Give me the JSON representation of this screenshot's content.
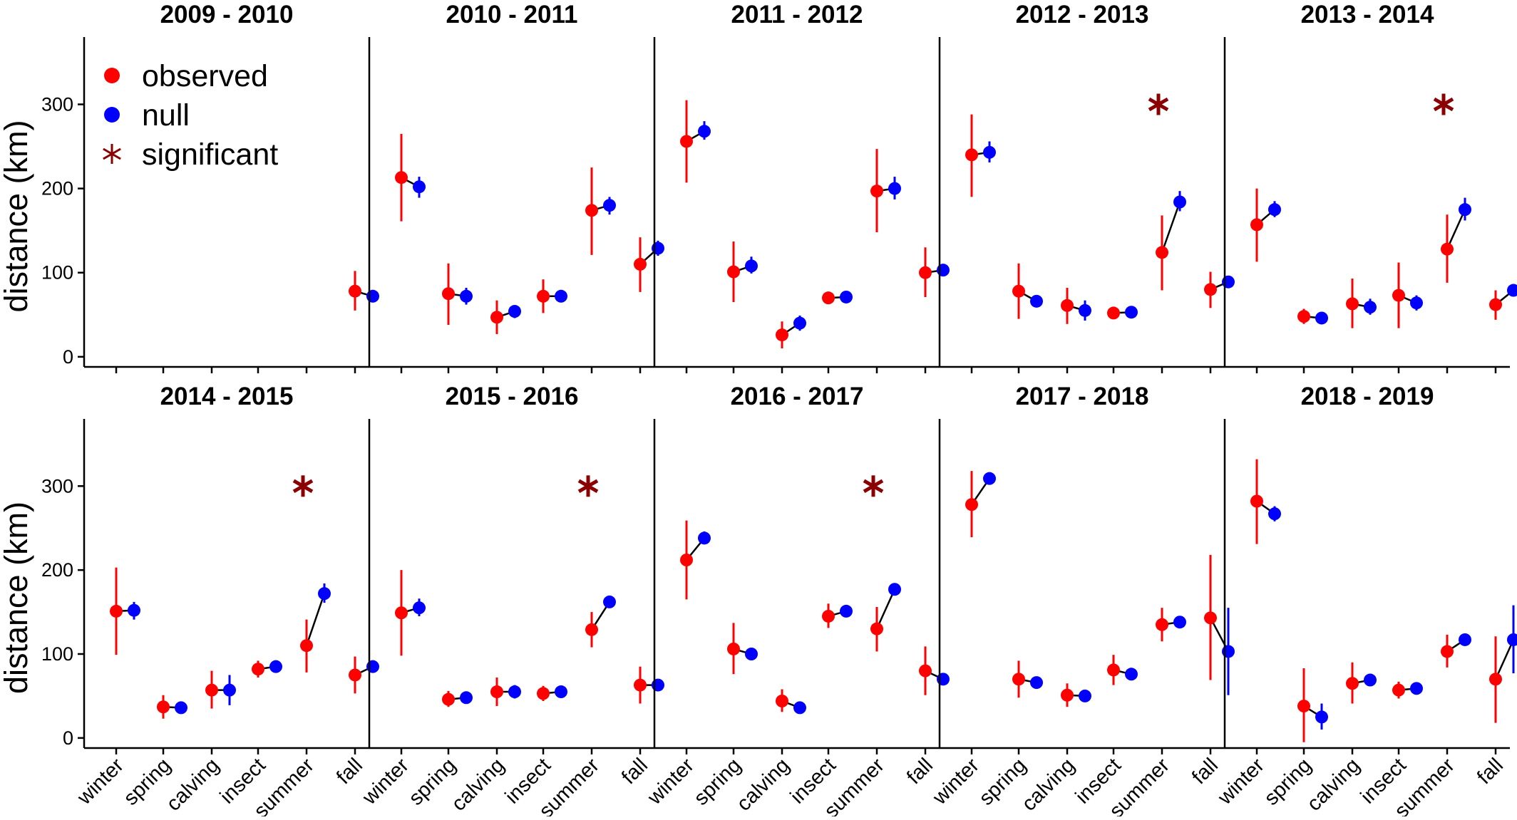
{
  "chart_data": {
    "type": "scatter",
    "title": "",
    "ylabel": "distance (km)",
    "xlabel": "",
    "categories": [
      "winter",
      "spring",
      "calving",
      "insect",
      "summer",
      "fall"
    ],
    "y_ticks": [
      0,
      100,
      200,
      300
    ],
    "ylim": [
      -12,
      380
    ],
    "grid": false,
    "legend": {
      "placement": "top-left",
      "entries": [
        {
          "key": "observed",
          "label": "observed",
          "marker": "circle",
          "color": "#ff0000"
        },
        {
          "key": "null",
          "label": "null",
          "marker": "circle",
          "color": "#0000ff"
        },
        {
          "key": "significant",
          "label": "significant",
          "marker": "asterisk",
          "color": "#8b0000"
        }
      ]
    },
    "colors": {
      "observed": "#ff0000",
      "null": "#0000ff",
      "significant": "#8b0000",
      "connector": "#000000"
    },
    "significant_marker_value": 300,
    "panels": [
      {
        "title": "2009 - 2010",
        "observed": [
          null,
          null,
          null,
          null,
          null,
          {
            "y": 78,
            "lo": 55,
            "hi": 102
          }
        ],
        "null": [
          null,
          null,
          null,
          null,
          null,
          {
            "y": 72,
            "lo": 66,
            "hi": 78
          }
        ],
        "significant": []
      },
      {
        "title": "2010 - 2011",
        "observed": [
          {
            "y": 213,
            "lo": 161,
            "hi": 265
          },
          {
            "y": 75,
            "lo": 38,
            "hi": 111
          },
          {
            "y": 47,
            "lo": 27,
            "hi": 67
          },
          {
            "y": 72,
            "lo": 52,
            "hi": 92
          },
          {
            "y": 174,
            "lo": 121,
            "hi": 225
          },
          {
            "y": 110,
            "lo": 77,
            "hi": 142
          }
        ],
        "null": [
          {
            "y": 202,
            "lo": 189,
            "hi": 214
          },
          {
            "y": 72,
            "lo": 62,
            "hi": 82
          },
          {
            "y": 54,
            "lo": 46,
            "hi": 61
          },
          {
            "y": 72,
            "lo": 66,
            "hi": 77
          },
          {
            "y": 180,
            "lo": 169,
            "hi": 190
          },
          {
            "y": 129,
            "lo": 120,
            "hi": 138
          }
        ],
        "significant": []
      },
      {
        "title": "2011 - 2012",
        "observed": [
          {
            "y": 256,
            "lo": 207,
            "hi": 305
          },
          {
            "y": 101,
            "lo": 65,
            "hi": 137
          },
          {
            "y": 26,
            "lo": 10,
            "hi": 42
          },
          {
            "y": 70,
            "lo": 67,
            "hi": 73
          },
          {
            "y": 197,
            "lo": 148,
            "hi": 247
          },
          {
            "y": 100,
            "lo": 71,
            "hi": 130
          }
        ],
        "null": [
          {
            "y": 268,
            "lo": 258,
            "hi": 280
          },
          {
            "y": 108,
            "lo": 99,
            "hi": 119
          },
          {
            "y": 40,
            "lo": 31,
            "hi": 49
          },
          {
            "y": 71,
            "lo": 67,
            "hi": 75
          },
          {
            "y": 200,
            "lo": 187,
            "hi": 214
          },
          {
            "y": 103,
            "lo": 97,
            "hi": 109
          }
        ],
        "significant": []
      },
      {
        "title": "2012 - 2013",
        "observed": [
          {
            "y": 240,
            "lo": 190,
            "hi": 288
          },
          {
            "y": 78,
            "lo": 45,
            "hi": 111
          },
          {
            "y": 61,
            "lo": 39,
            "hi": 82
          },
          {
            "y": 52,
            "lo": 49,
            "hi": 55
          },
          {
            "y": 124,
            "lo": 79,
            "hi": 168
          },
          {
            "y": 80,
            "lo": 58,
            "hi": 101
          }
        ],
        "null": [
          {
            "y": 243,
            "lo": 231,
            "hi": 256
          },
          {
            "y": 66,
            "lo": 59,
            "hi": 73
          },
          {
            "y": 55,
            "lo": 43,
            "hi": 67
          },
          {
            "y": 53,
            "lo": 49,
            "hi": 57
          },
          {
            "y": 184,
            "lo": 173,
            "hi": 197
          },
          {
            "y": 89,
            "lo": 84,
            "hi": 95
          }
        ],
        "significant": [
          "summer"
        ]
      },
      {
        "title": "2013 - 2014",
        "observed": [
          {
            "y": 157,
            "lo": 113,
            "hi": 200
          },
          {
            "y": 48,
            "lo": 39,
            "hi": 57
          },
          {
            "y": 63,
            "lo": 34,
            "hi": 93
          },
          {
            "y": 73,
            "lo": 34,
            "hi": 112
          },
          {
            "y": 128,
            "lo": 88,
            "hi": 169
          },
          {
            "y": 62,
            "lo": 44,
            "hi": 79
          }
        ],
        "null": [
          {
            "y": 175,
            "lo": 166,
            "hi": 185
          },
          {
            "y": 46,
            "lo": 42,
            "hi": 50
          },
          {
            "y": 59,
            "lo": 50,
            "hi": 69
          },
          {
            "y": 64,
            "lo": 55,
            "hi": 73
          },
          {
            "y": 175,
            "lo": 162,
            "hi": 189
          },
          {
            "y": 79,
            "lo": 74,
            "hi": 84
          }
        ],
        "significant": [
          "summer"
        ]
      },
      {
        "title": "2014 - 2015",
        "observed": [
          {
            "y": 151,
            "lo": 99,
            "hi": 203
          },
          {
            "y": 37,
            "lo": 23,
            "hi": 51
          },
          {
            "y": 57,
            "lo": 35,
            "hi": 80
          },
          {
            "y": 82,
            "lo": 72,
            "hi": 92
          },
          {
            "y": 110,
            "lo": 78,
            "hi": 141
          },
          {
            "y": 75,
            "lo": 53,
            "hi": 97
          }
        ],
        "null": [
          {
            "y": 152,
            "lo": 141,
            "hi": 162
          },
          {
            "y": 36,
            "lo": 31,
            "hi": 41
          },
          {
            "y": 57,
            "lo": 39,
            "hi": 75
          },
          {
            "y": 85,
            "lo": 80,
            "hi": 90
          },
          {
            "y": 172,
            "lo": 161,
            "hi": 184
          },
          {
            "y": 85,
            "lo": 80,
            "hi": 89
          }
        ],
        "significant": [
          "summer"
        ]
      },
      {
        "title": "2015 - 2016",
        "observed": [
          {
            "y": 149,
            "lo": 98,
            "hi": 200
          },
          {
            "y": 46,
            "lo": 37,
            "hi": 56
          },
          {
            "y": 55,
            "lo": 38,
            "hi": 72
          },
          {
            "y": 53,
            "lo": 44,
            "hi": 62
          },
          {
            "y": 129,
            "lo": 108,
            "hi": 150
          },
          {
            "y": 63,
            "lo": 41,
            "hi": 85
          }
        ],
        "null": [
          {
            "y": 155,
            "lo": 145,
            "hi": 166
          },
          {
            "y": 48,
            "lo": 44,
            "hi": 52
          },
          {
            "y": 55,
            "lo": 47,
            "hi": 63
          },
          {
            "y": 55,
            "lo": 51,
            "hi": 59
          },
          {
            "y": 162,
            "lo": 158,
            "hi": 166
          },
          {
            "y": 63,
            "lo": 59,
            "hi": 67
          }
        ],
        "significant": [
          "summer"
        ]
      },
      {
        "title": "2016 - 2017",
        "observed": [
          {
            "y": 212,
            "lo": 165,
            "hi": 259
          },
          {
            "y": 106,
            "lo": 76,
            "hi": 137
          },
          {
            "y": 44,
            "lo": 31,
            "hi": 58
          },
          {
            "y": 145,
            "lo": 131,
            "hi": 160
          },
          {
            "y": 130,
            "lo": 103,
            "hi": 156
          },
          {
            "y": 80,
            "lo": 51,
            "hi": 109
          }
        ],
        "null": [
          {
            "y": 238,
            "lo": 231,
            "hi": 246
          },
          {
            "y": 100,
            "lo": 96,
            "hi": 104
          },
          {
            "y": 36,
            "lo": 33,
            "hi": 39
          },
          {
            "y": 151,
            "lo": 147,
            "hi": 155
          },
          {
            "y": 177,
            "lo": 173,
            "hi": 181
          },
          {
            "y": 70,
            "lo": 66,
            "hi": 74
          }
        ],
        "significant": [
          "summer"
        ]
      },
      {
        "title": "2017 - 2018",
        "observed": [
          {
            "y": 278,
            "lo": 239,
            "hi": 318
          },
          {
            "y": 70,
            "lo": 48,
            "hi": 92
          },
          {
            "y": 51,
            "lo": 37,
            "hi": 65
          },
          {
            "y": 81,
            "lo": 63,
            "hi": 99
          },
          {
            "y": 135,
            "lo": 115,
            "hi": 155
          },
          {
            "y": 143,
            "lo": 69,
            "hi": 218
          }
        ],
        "null": [
          {
            "y": 309,
            "lo": 303,
            "hi": 315
          },
          {
            "y": 66,
            "lo": 59,
            "hi": 72
          },
          {
            "y": 50,
            "lo": 46,
            "hi": 54
          },
          {
            "y": 76,
            "lo": 72,
            "hi": 80
          },
          {
            "y": 138,
            "lo": 134,
            "hi": 142
          },
          {
            "y": 103,
            "lo": 51,
            "hi": 155
          }
        ],
        "significant": []
      },
      {
        "title": "2018 - 2019",
        "observed": [
          {
            "y": 282,
            "lo": 231,
            "hi": 332
          },
          {
            "y": 38,
            "lo": -5,
            "hi": 83
          },
          {
            "y": 65,
            "lo": 41,
            "hi": 90
          },
          {
            "y": 57,
            "lo": 47,
            "hi": 67
          },
          {
            "y": 103,
            "lo": 84,
            "hi": 123
          },
          {
            "y": 70,
            "lo": 18,
            "hi": 121
          }
        ],
        "null": [
          {
            "y": 267,
            "lo": 258,
            "hi": 276
          },
          {
            "y": 25,
            "lo": 10,
            "hi": 41
          },
          {
            "y": 69,
            "lo": 62,
            "hi": 76
          },
          {
            "y": 59,
            "lo": 55,
            "hi": 63
          },
          {
            "y": 117,
            "lo": 113,
            "hi": 121
          },
          {
            "y": 117,
            "lo": 77,
            "hi": 158
          }
        ],
        "significant": []
      }
    ]
  }
}
